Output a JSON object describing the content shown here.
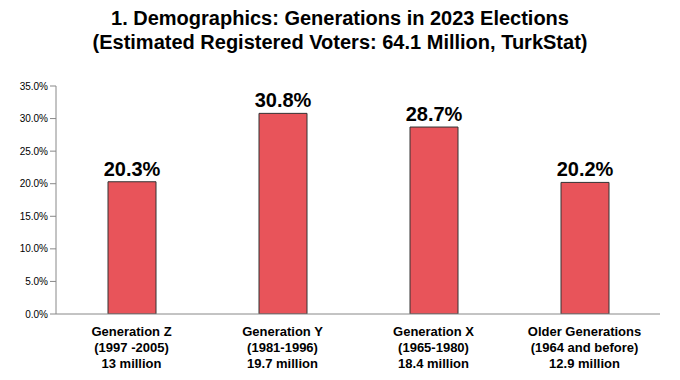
{
  "chart_data": {
    "type": "bar",
    "title": "1. Demographics: Generations in 2023 Elections",
    "subtitle": "(Estimated Registered Voters: 64.1 Million, TurkStat)",
    "categories": [
      "Generation Z\n(1997 -2005)\n13 million",
      "Generation Y\n(1981-1996)\n19.7 million",
      "Generation X\n(1965-1980)\n18.4 million",
      "Older Generations\n(1964 and before)\n12.9 million"
    ],
    "values": [
      20.3,
      30.8,
      28.7,
      20.2
    ],
    "value_labels": [
      "20.3%",
      "30.8%",
      "28.7%",
      "20.2%"
    ],
    "color": "#e8545a",
    "ylim": [
      0,
      35
    ],
    "yticks": [
      {
        "value": 0,
        "label": "0.0%"
      },
      {
        "value": 5,
        "label": "5.0%"
      },
      {
        "value": 10,
        "label": "10.0%"
      },
      {
        "value": 15,
        "label": "15.0%"
      },
      {
        "value": 20,
        "label": "20.0%"
      },
      {
        "value": 25,
        "label": "25.0%"
      },
      {
        "value": 30,
        "label": "30.0%"
      },
      {
        "value": 35,
        "label": "35.0%"
      }
    ],
    "grid": false,
    "data_labels": true
  }
}
